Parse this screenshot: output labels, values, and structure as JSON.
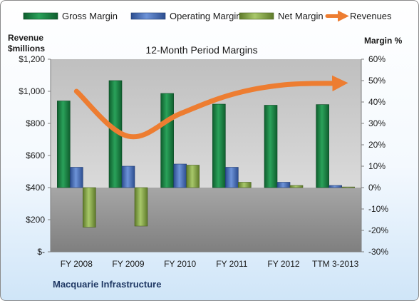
{
  "company": "Macquarie Infrastructure",
  "chart_data": {
    "type": "bar",
    "title": "12-Month Period Margins",
    "categories": [
      "FY 2008",
      "FY 2009",
      "FY 2010",
      "FY 2011",
      "FY 2012",
      "TTM 3-2013"
    ],
    "left_axis": {
      "label_line1": "Revenue",
      "label_line2": "$millions",
      "range": [
        0,
        1200
      ],
      "ticks": [
        0,
        200,
        400,
        600,
        800,
        1000,
        1200
      ],
      "tick_labels": [
        "$-",
        "$200",
        "$400",
        "$600",
        "$800",
        "$1,000",
        "$1,200"
      ]
    },
    "right_axis": {
      "label": "Margin %",
      "range": [
        -30,
        60
      ],
      "ticks": [
        -30,
        -20,
        -10,
        0,
        10,
        20,
        30,
        40,
        50,
        60
      ],
      "tick_labels": [
        "-30%",
        "-20%",
        "-10%",
        "0%",
        "10%",
        "20%",
        "30%",
        "40%",
        "50%",
        "60%"
      ]
    },
    "series": [
      {
        "name": "Gross Margin",
        "axis": "right",
        "kind": "bar",
        "color": "#1e8c4a",
        "values": [
          40.5,
          50,
          44,
          39,
          38.5,
          38.8
        ]
      },
      {
        "name": "Operating Margin",
        "axis": "right",
        "kind": "bar",
        "color": "#4a73c0",
        "values": [
          9.5,
          10,
          11,
          9.5,
          2.5,
          1
        ]
      },
      {
        "name": "Net Margin",
        "axis": "right",
        "kind": "bar",
        "color": "#8aad4a",
        "values": [
          -18.5,
          -18,
          10.5,
          2.5,
          1,
          0.3
        ]
      },
      {
        "name": "Revenues",
        "axis": "left",
        "kind": "line",
        "color": "#ed7d31",
        "values": [
          1000,
          720,
          860,
          980,
          1040,
          1050
        ]
      }
    ],
    "legend_position": "top",
    "grid": false
  }
}
